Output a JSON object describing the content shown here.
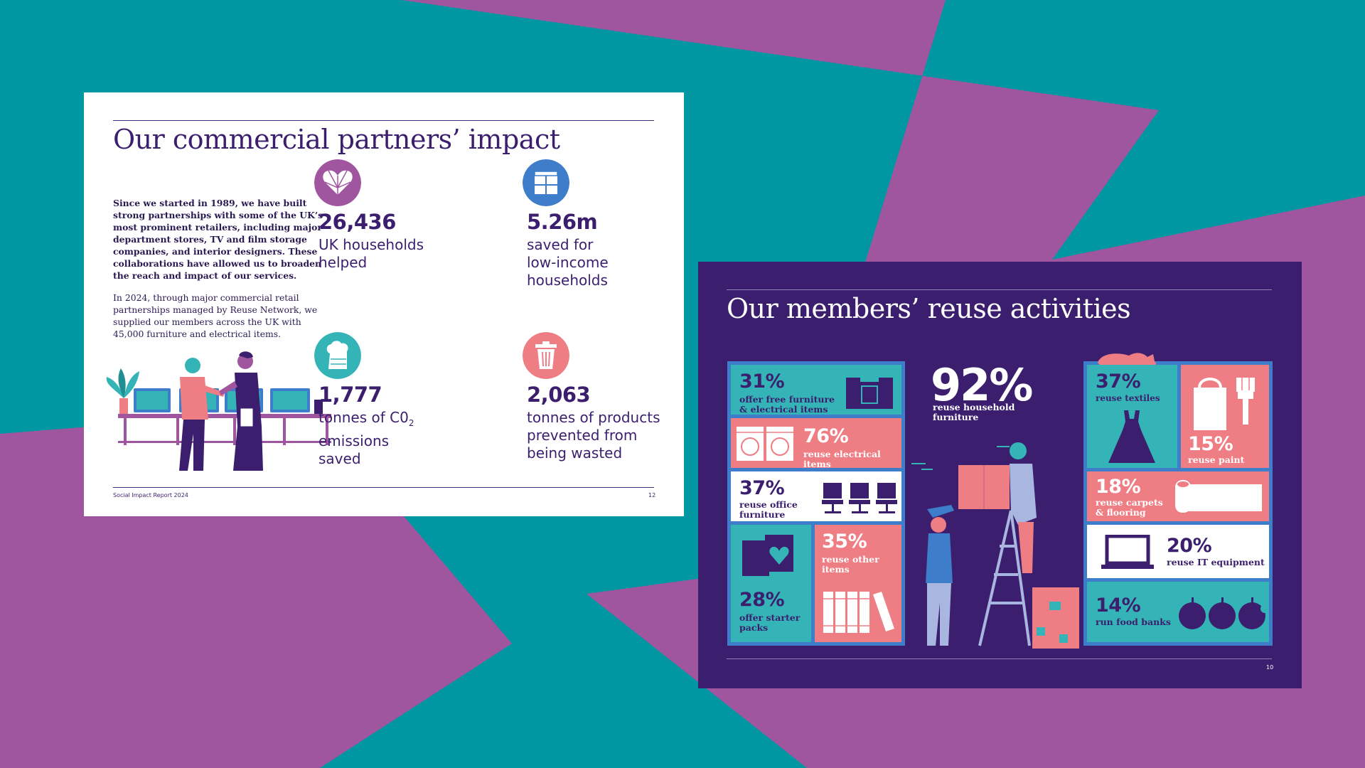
{
  "colors": {
    "teal": "#0097a2",
    "purple_bg": "#a0559f",
    "navy": "#3b1f6e",
    "shelf_blue": "#3d7dca",
    "pink": "#ef7d84",
    "cell_teal": "#34b4b6"
  },
  "page1": {
    "title": "Our commercial partners’ impact",
    "intro_bold": "Since we started in 1989, we have built strong partnerships with some of the UK’s most prominent retailers, including major department stores, TV and film storage companies, and interior designers. These collaborations have allowed us to broaden the reach and impact of our services.",
    "intro_text": "In 2024, through major commercial retail partnerships managed by Reuse Network, we supplied our members across the UK with 45,000 furniture and electrical items.",
    "stats": [
      {
        "icon": "heart-icon",
        "value": "26,436",
        "label": "UK households\nhelped"
      },
      {
        "icon": "cupboard-icon",
        "value": "5.26m",
        "label": "saved for\nlow-income\nhouseholds"
      },
      {
        "icon": "smoke-stack-icon",
        "value": "1,777",
        "label_pre": "tonnes of C0",
        "label_sub": "2",
        "label_post": "\nemissions\nsaved"
      },
      {
        "icon": "trash-bin-icon",
        "value": "2,063",
        "label": "tonnes of products\nprevented from\nbeing wasted"
      }
    ],
    "footer_left": "Social Impact Report 2024",
    "footer_right": "12"
  },
  "page2": {
    "title": "Our members’ reuse activities",
    "items": {
      "free_furniture": {
        "pct": "31%",
        "label": "offer free furniture\n& electrical items"
      },
      "electrical": {
        "pct": "76%",
        "label": "reuse electrical items"
      },
      "office": {
        "pct": "37%",
        "label": "reuse office\nfurniture"
      },
      "other": {
        "pct": "35%",
        "label": "reuse other\nitems"
      },
      "starter": {
        "pct": "28%",
        "label": "offer starter\npacks"
      },
      "household": {
        "pct": "92%",
        "label": "reuse household\nfurniture"
      },
      "textiles": {
        "pct": "37%",
        "label": "reuse textiles"
      },
      "paint": {
        "pct": "15%",
        "label": "reuse paint"
      },
      "carpets": {
        "pct": "18%",
        "label": "reuse carpets\n& flooring"
      },
      "it": {
        "pct": "20%",
        "label": "reuse IT equipment"
      },
      "food": {
        "pct": "14%",
        "label": "run food banks"
      }
    },
    "footer_right": "10"
  }
}
